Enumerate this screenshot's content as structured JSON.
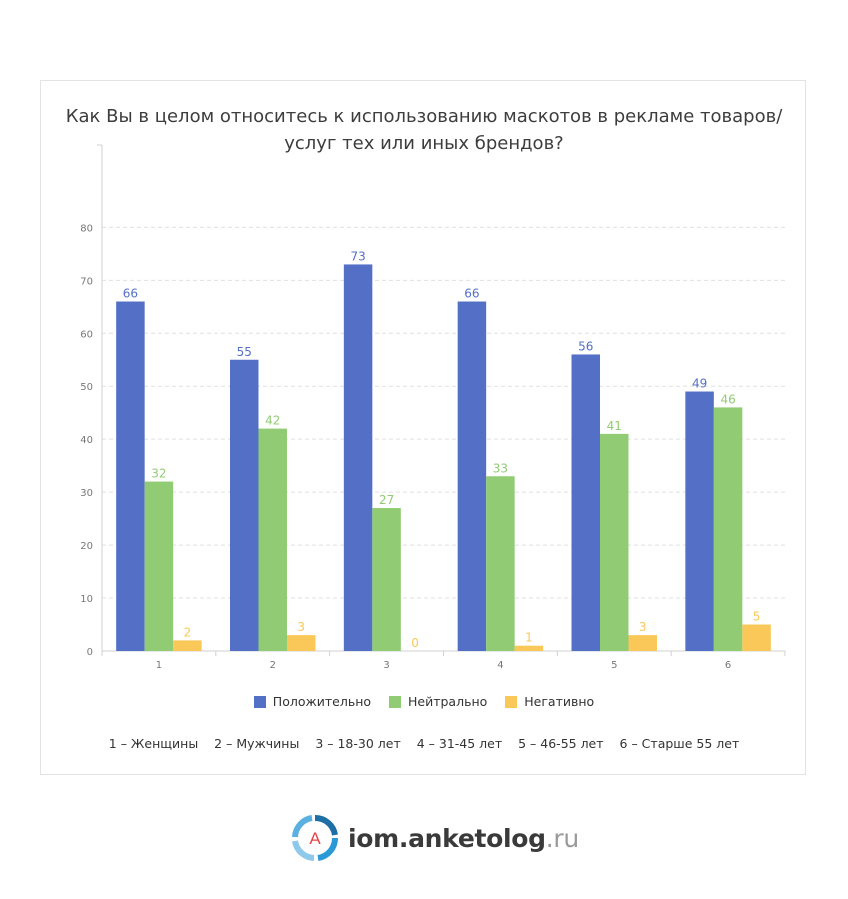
{
  "title_line1": "Как Вы в целом относитесь к использованию маскотов в рекламе товаров/",
  "title_line2": "услуг тех или иных брендов?",
  "chart_data": {
    "type": "bar",
    "categories": [
      "1",
      "2",
      "3",
      "4",
      "5",
      "6"
    ],
    "series": [
      {
        "name": "Положительно",
        "values": [
          66,
          55,
          73,
          66,
          56,
          49
        ],
        "color": "#5470c6"
      },
      {
        "name": "Нейтрально",
        "values": [
          32,
          42,
          27,
          33,
          41,
          46
        ],
        "color": "#91cc75"
      },
      {
        "name": "Негативно",
        "values": [
          2,
          3,
          0,
          1,
          3,
          5
        ],
        "color": "#fac858"
      }
    ],
    "ylim": [
      0,
      88
    ],
    "yticks": [
      0,
      10,
      20,
      30,
      40,
      50,
      60,
      70,
      80
    ],
    "grid": true,
    "legend_position": "bottom"
  },
  "footnote": [
    "1 – Женщины",
    "2 – Мужчины",
    "3 – 18-30 лет",
    "4 – 31-45 лет",
    "5 – 46-55 лет",
    "6 – Старше 55 лет"
  ],
  "brand": {
    "icon_letter": "A",
    "name": "iom.anketolog",
    "tld": ".ru"
  }
}
